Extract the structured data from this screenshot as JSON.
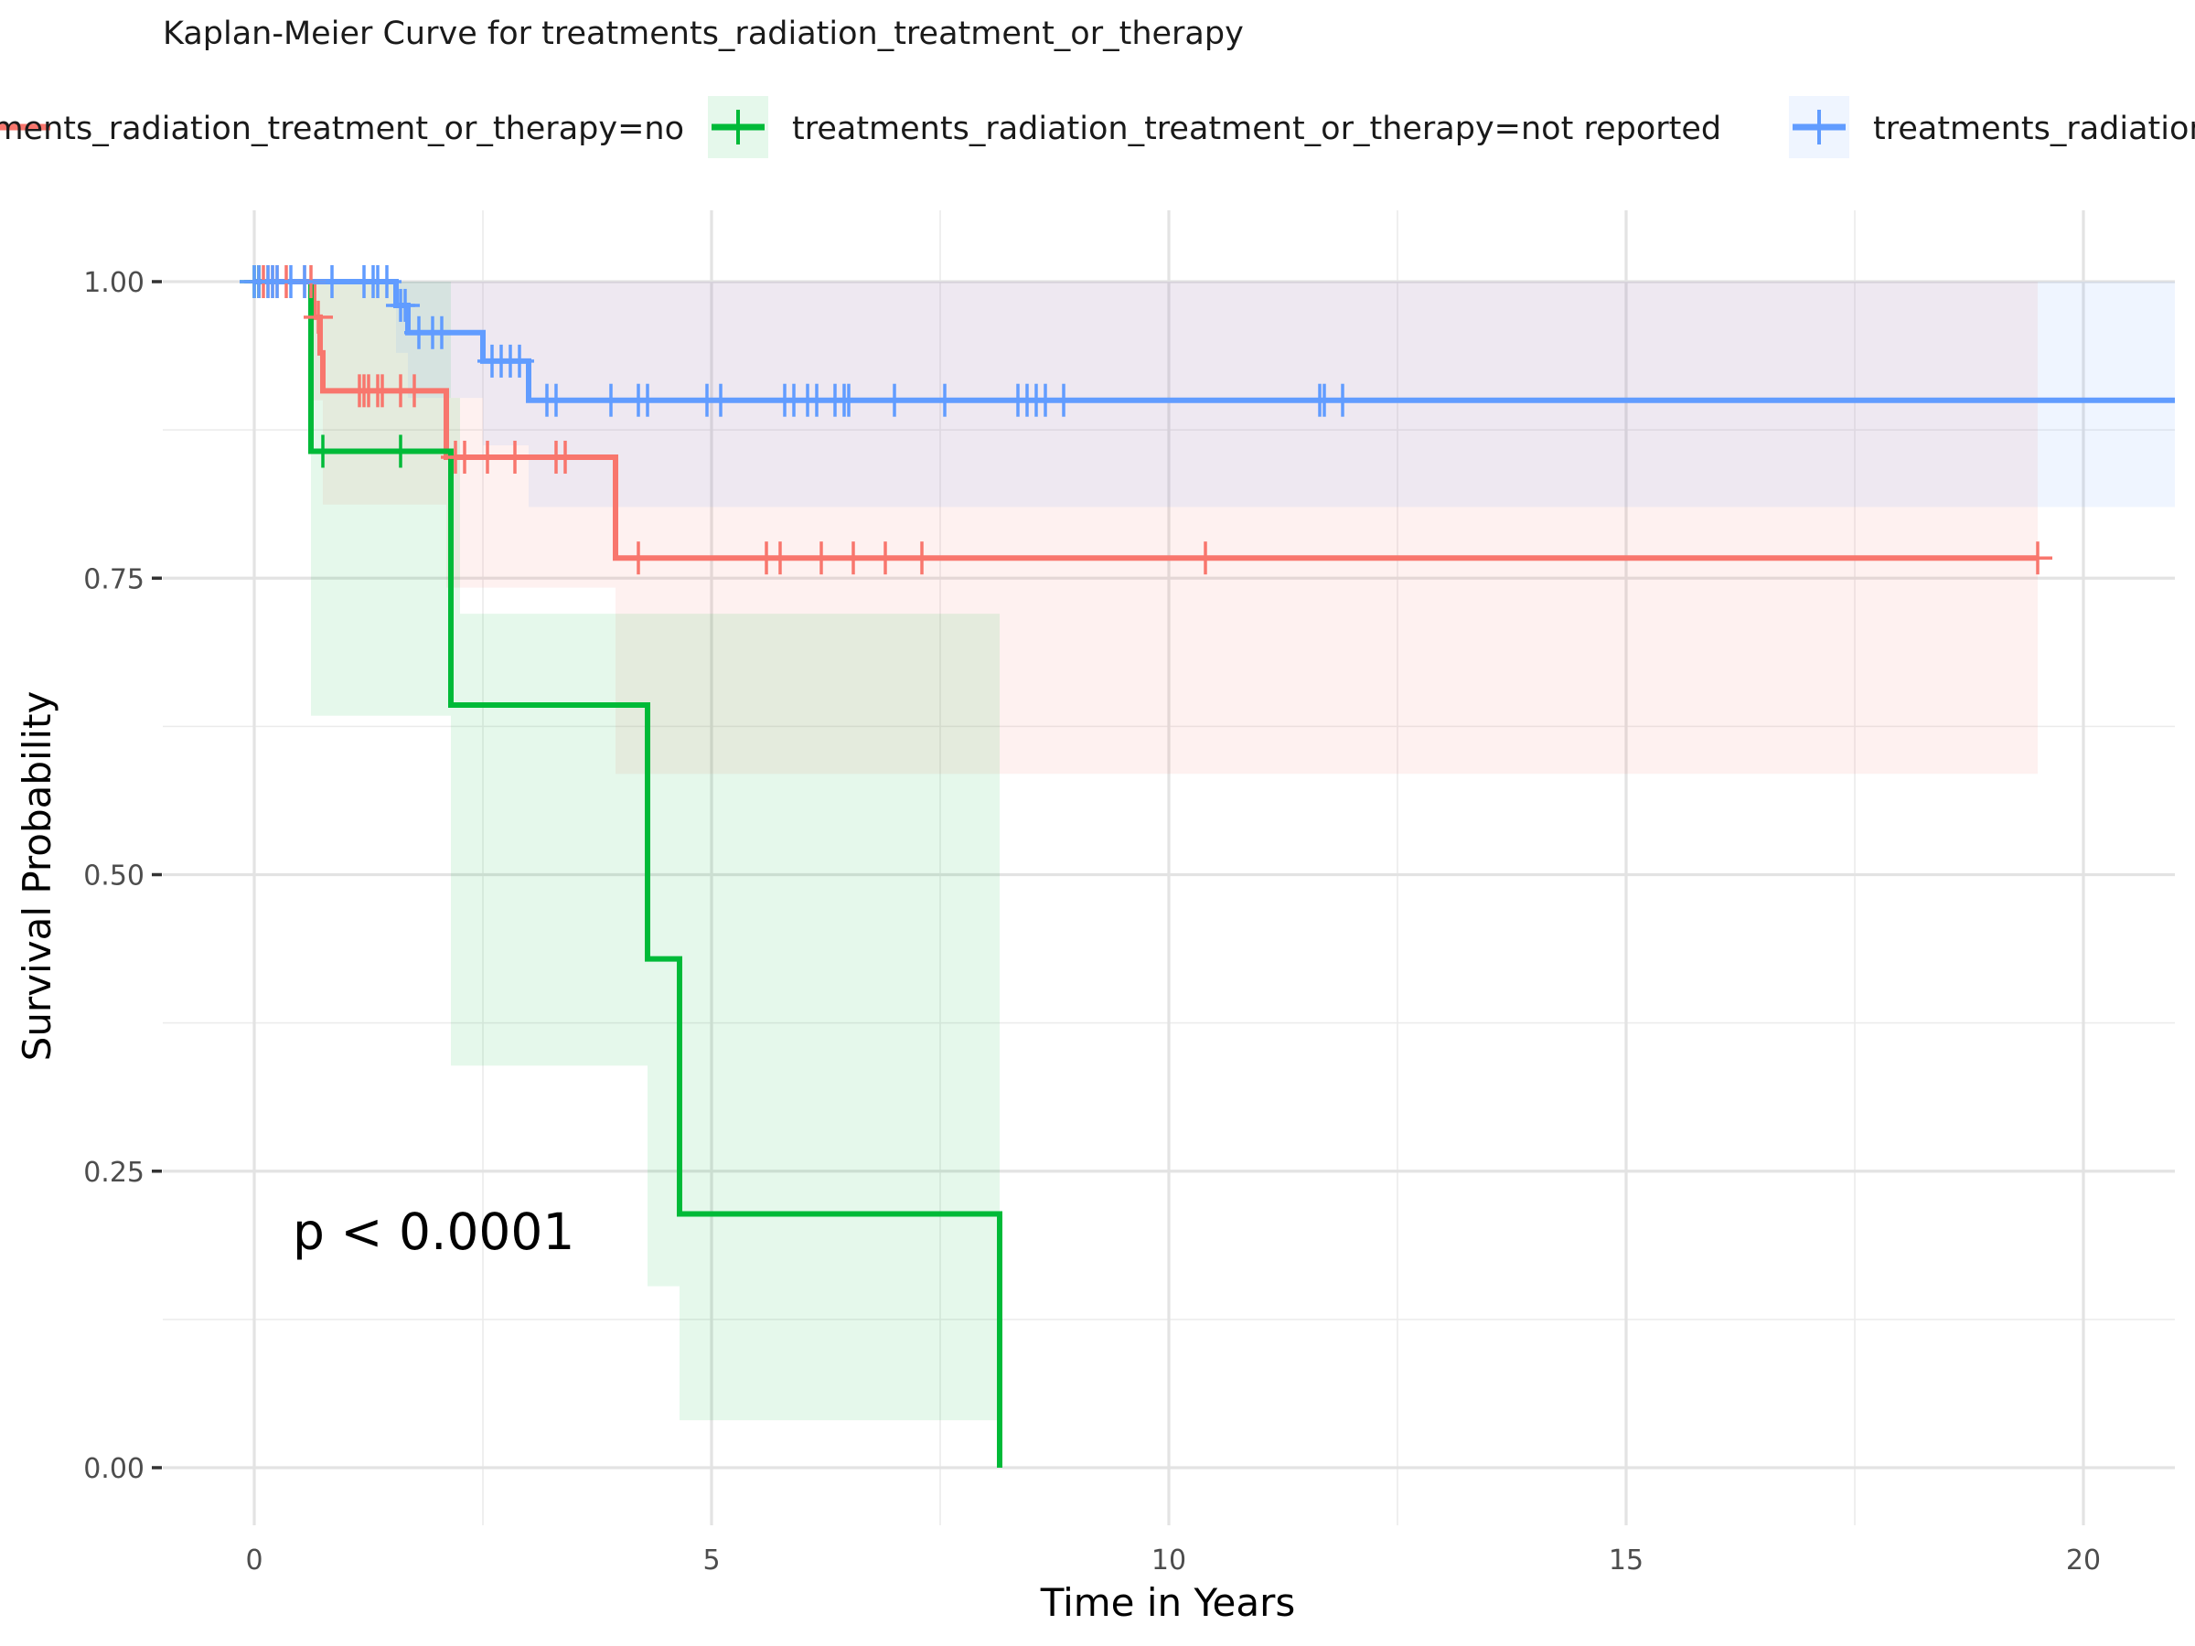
{
  "chart_data": {
    "type": "line",
    "title": "Kaplan-Meier Curve for treatments_radiation_treatment_or_therapy",
    "xlabel": "Time in Years",
    "ylabel": "Survival Probability",
    "xlim": [
      -1,
      21
    ],
    "ylim": [
      -0.05,
      1.05
    ],
    "x_ticks": [
      0,
      5,
      10,
      15,
      20
    ],
    "x_tick_labels": [
      "0",
      "5",
      "10",
      "15",
      "20"
    ],
    "y_ticks": [
      0,
      0.25,
      0.5,
      0.75,
      1
    ],
    "y_tick_labels": [
      "0.00",
      "0.25",
      "0.50",
      "0.75",
      "1.00"
    ],
    "grid": true,
    "legend_position": "top",
    "annotation": "p < 0.0001",
    "legend_text": [
      "treatments_radiation_treatment_or_therapy=no",
      "treatments_radiation_treatment_or_therapy=not reported",
      "treatments_radiation_treatment_or_therapy=yes"
    ],
    "series": [
      {
        "name": "treatments_radiation_treatment_or_therapy=no",
        "color": "#F8766D",
        "steps": [
          [
            0,
            1.0
          ],
          [
            0.65,
            0.97
          ],
          [
            0.72,
            0.94
          ],
          [
            0.75,
            0.908
          ],
          [
            2.1,
            0.852
          ],
          [
            3.95,
            0.767
          ],
          [
            19.5,
            0.767
          ]
        ],
        "ci": [
          [
            0,
            1.0,
            1.0
          ],
          [
            0.65,
            0.9,
            1.0
          ],
          [
            0.75,
            0.812,
            1.0
          ],
          [
            2.1,
            0.742,
            1.0
          ],
          [
            3.95,
            0.585,
            1.0
          ],
          [
            19.5,
            0.585,
            1.0
          ]
        ],
        "censor": [
          0.05,
          0.1,
          0.15,
          0.2,
          0.25,
          0.35,
          0.55,
          0.62,
          0.7,
          1.15,
          1.2,
          1.25,
          1.35,
          1.4,
          1.6,
          1.75,
          2.2,
          2.3,
          2.55,
          2.85,
          3.3,
          3.4,
          4.2,
          5.6,
          5.75,
          6.2,
          6.55,
          6.9,
          7.3,
          10.4,
          19.5
        ]
      },
      {
        "name": "treatments_radiation_treatment_or_therapy=not reported",
        "color": "#00BA38",
        "steps": [
          [
            0,
            1.0
          ],
          [
            0.62,
            0.857
          ],
          [
            2.15,
            0.643
          ],
          [
            4.3,
            0.429
          ],
          [
            4.65,
            0.214
          ],
          [
            8.15,
            0.0
          ]
        ],
        "ci": [
          [
            0,
            1.0,
            1.0
          ],
          [
            0.62,
            0.634,
            1.0
          ],
          [
            2.15,
            0.339,
            0.902
          ],
          [
            2.25,
            0.339,
            0.72
          ],
          [
            4.3,
            0.153,
            0.72
          ],
          [
            4.65,
            0.04,
            0.72
          ],
          [
            8.15,
            0.04,
            0.72
          ]
        ],
        "censor": [
          0.0,
          0.05,
          0.75,
          1.6
        ]
      },
      {
        "name": "treatments_radiation_treatment_or_therapy=yes",
        "color": "#619CFF",
        "steps": [
          [
            0,
            1.0
          ],
          [
            1.55,
            0.98
          ],
          [
            1.68,
            0.957
          ],
          [
            2.5,
            0.933
          ],
          [
            3.0,
            0.9
          ],
          [
            21,
            0.9
          ]
        ],
        "ci": [
          [
            0,
            1.0,
            1.0
          ],
          [
            1.55,
            0.94,
            1.0
          ],
          [
            1.68,
            0.902,
            1.0
          ],
          [
            2.5,
            0.862,
            1.0
          ],
          [
            3.0,
            0.81,
            1.0
          ],
          [
            21,
            0.81,
            1.0
          ]
        ],
        "censor": [
          0.0,
          0.05,
          0.15,
          0.2,
          0.25,
          0.4,
          0.55,
          0.85,
          1.2,
          1.3,
          1.35,
          1.45,
          1.6,
          1.65,
          1.8,
          1.95,
          2.05,
          2.6,
          2.7,
          2.8,
          2.9,
          3.2,
          3.3,
          3.9,
          4.2,
          4.3,
          4.95,
          5.1,
          5.8,
          5.9,
          6.05,
          6.15,
          6.35,
          6.45,
          6.5,
          7.0,
          7.55,
          8.35,
          8.45,
          8.55,
          8.65,
          8.85,
          11.65,
          11.7,
          11.9
        ]
      }
    ]
  }
}
